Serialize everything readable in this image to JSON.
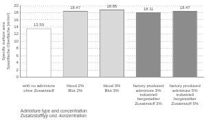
{
  "chart_data": {
    "type": "bar",
    "categories": [
      "with no admixture\nohne Zusatzstoff",
      "blood 2%\nBlut 2%",
      "blood 3%\nBlut 3%",
      "factory produced\nadmixture 3%\nindustriell\nhergestellter\nZusatzstoff 3%",
      "factory produced\nadmixture 5%\nindustriell\nhergestellter\nZusatzstoff 5%"
    ],
    "values": [
      13.59,
      18.47,
      18.85,
      18.11,
      18.47
    ],
    "colors": [
      "#ffffff",
      "#d9d9d9",
      "#d9d9d9",
      "#8c8c8c",
      "#8c8c8c"
    ],
    "xlabel": "Admixture type and concentration\nZusatzstofftyp und -konzentration",
    "ylabel": "Specific surface area\nSpezifische Oberfläche [m²/m³]",
    "ylim": [
      0,
      20
    ],
    "yticks": [
      0,
      2,
      4,
      6,
      8,
      10,
      12,
      14,
      16,
      18,
      20
    ],
    "grid": true,
    "data_labels": true
  }
}
